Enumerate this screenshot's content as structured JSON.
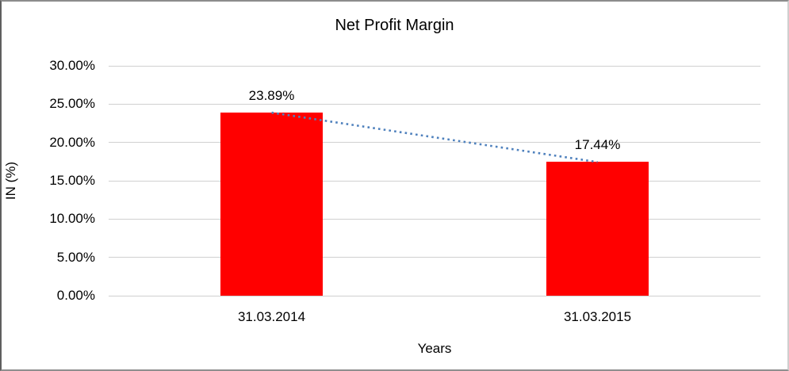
{
  "chart_data": {
    "type": "bar",
    "title": "Net Profit Margin",
    "xlabel": "Years",
    "ylabel": "IN (%)",
    "categories": [
      "31.03.2014",
      "31.03.2015"
    ],
    "values": [
      23.89,
      17.44
    ],
    "value_labels": [
      "23.89%",
      "17.44%"
    ],
    "ylim": [
      0,
      30
    ],
    "ytick_step": 5,
    "ytick_labels": [
      "0.00%",
      "5.00%",
      "10.00%",
      "15.00%",
      "20.00%",
      "25.00%",
      "30.00%"
    ],
    "grid": true,
    "legend": "none",
    "colors": {
      "bar": "#ff0000",
      "trendline": "#4f81bd",
      "gridline": "#d0d0d0",
      "text": "#000000"
    },
    "trendline": {
      "style": "dotted",
      "connects": "bar tops"
    }
  }
}
